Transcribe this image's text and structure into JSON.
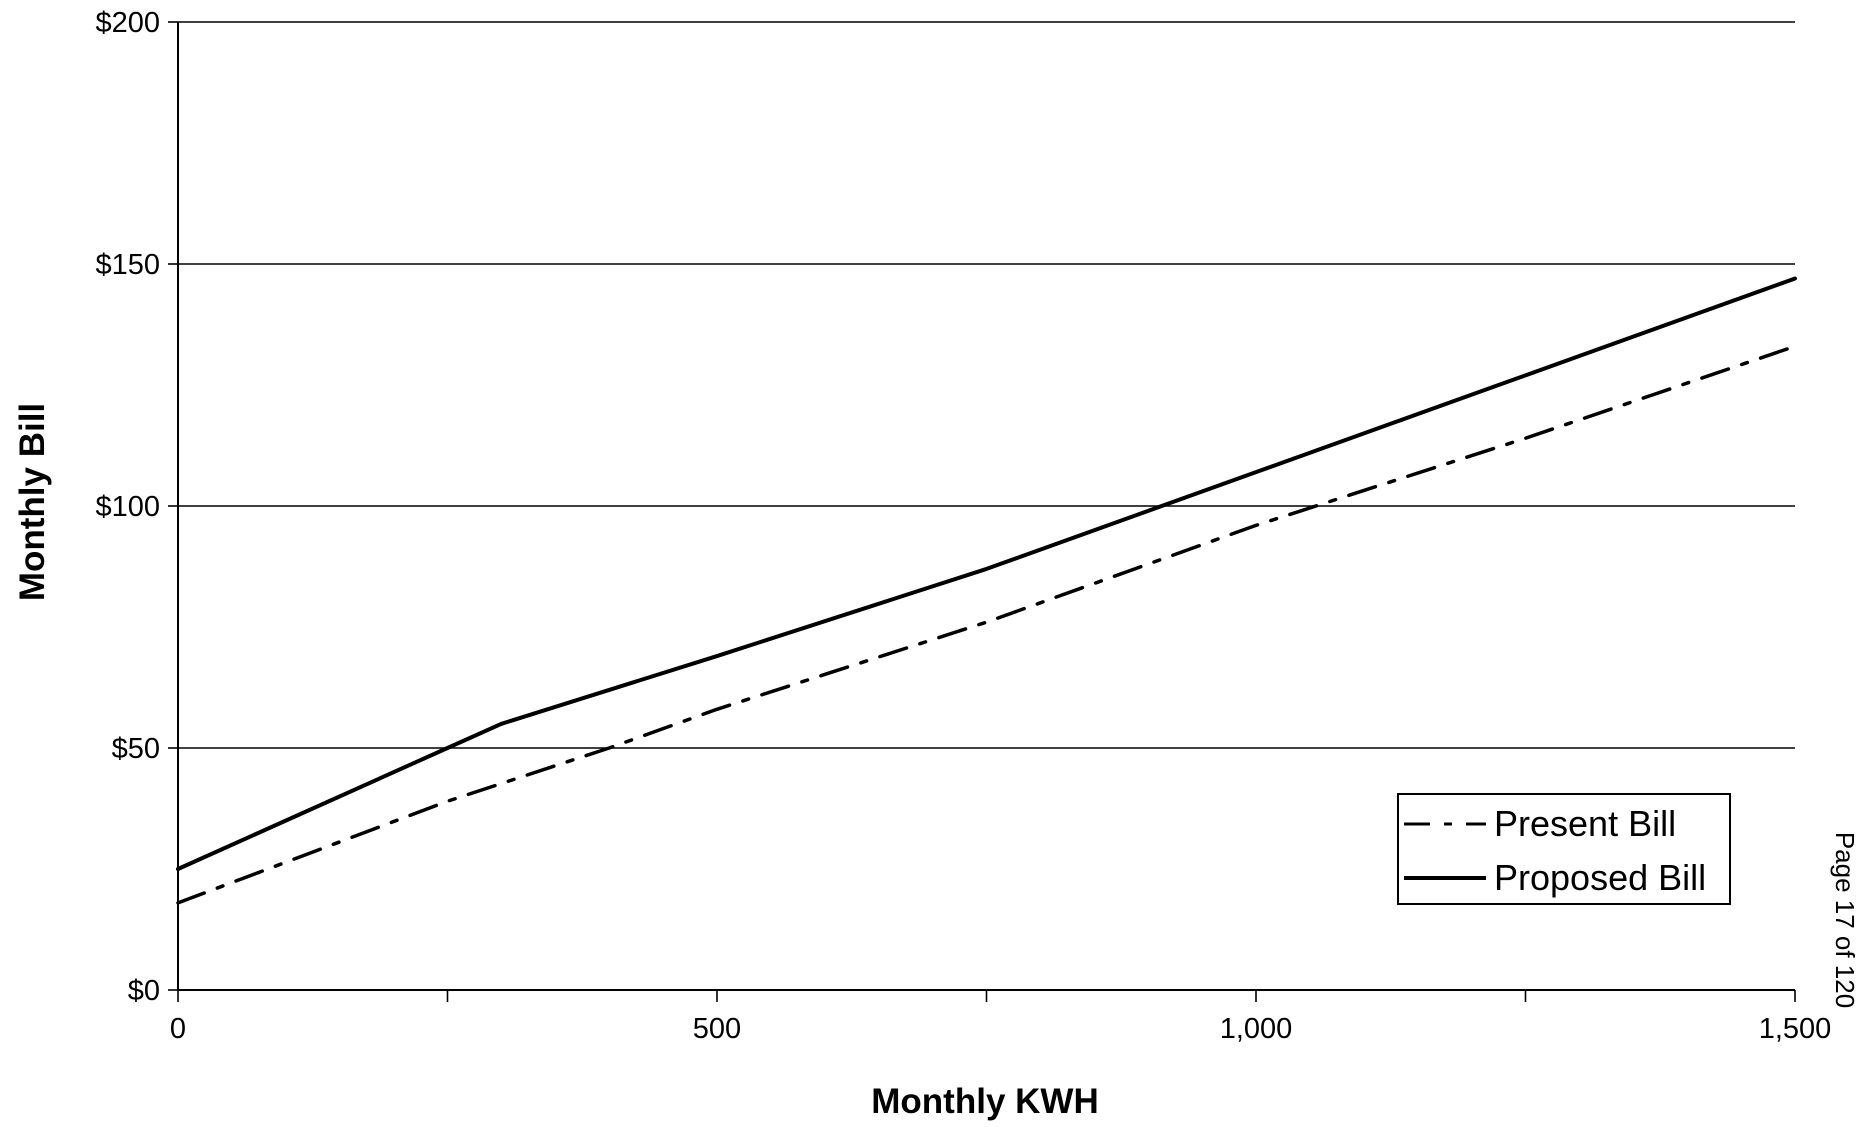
{
  "chart_data": {
    "type": "line",
    "xlabel": "Monthly KWH",
    "ylabel": "Monthly Bill",
    "xlim": [
      0,
      1500
    ],
    "ylim": [
      0,
      200
    ],
    "x_ticks": [
      "0",
      "500",
      "1,000",
      "1,500"
    ],
    "x_tick_values": [
      0,
      500,
      1000,
      1500
    ],
    "x_minor_ticks": [
      250,
      750,
      1250
    ],
    "y_ticks": [
      "$0",
      "$50",
      "$100",
      "$150",
      "$200"
    ],
    "y_tick_values": [
      0,
      50,
      100,
      150,
      200
    ],
    "grid": "horizontal",
    "legend_position": "bottom-right",
    "series": [
      {
        "name": "Present Bill",
        "style": "dash-dot",
        "color": "#000000",
        "x": [
          0,
          250,
          400,
          500,
          750,
          1000,
          1250,
          1500
        ],
        "y": [
          18,
          39,
          50,
          58,
          76,
          96,
          114,
          133
        ]
      },
      {
        "name": "Proposed Bill",
        "style": "solid",
        "color": "#000000",
        "x": [
          0,
          250,
          300,
          500,
          750,
          1000,
          1250,
          1500
        ],
        "y": [
          25,
          50,
          55,
          69,
          87,
          107,
          127,
          147
        ]
      }
    ]
  },
  "page_note": "Page 17 of 120"
}
